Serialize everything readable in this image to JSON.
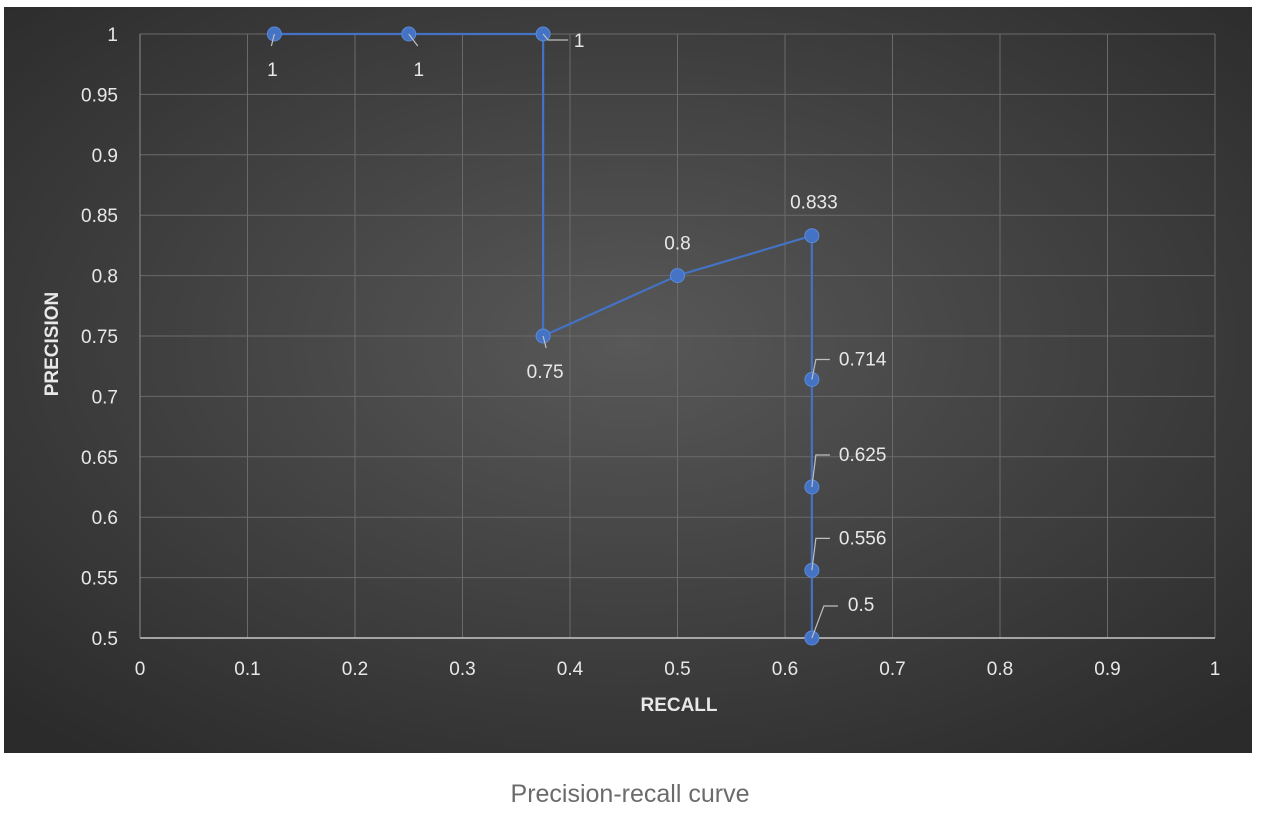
{
  "chart_data": {
    "type": "line",
    "xlabel": "RECALL",
    "ylabel": "PRECISION",
    "xlim": [
      0,
      1
    ],
    "ylim": [
      0.5,
      1
    ],
    "x_ticks": [
      "0",
      "0.1",
      "0.2",
      "0.3",
      "0.4",
      "0.5",
      "0.6",
      "0.7",
      "0.8",
      "0.9",
      "1"
    ],
    "y_ticks": [
      "0.5",
      "0.55",
      "0.6",
      "0.65",
      "0.7",
      "0.75",
      "0.8",
      "0.85",
      "0.9",
      "0.95",
      "1"
    ],
    "grid": true,
    "series": [
      {
        "name": "Precision-recall",
        "color": "#4472c4",
        "points": [
          {
            "x": 0.125,
            "y": 1,
            "label": "1"
          },
          {
            "x": 0.25,
            "y": 1,
            "label": "1"
          },
          {
            "x": 0.375,
            "y": 1,
            "label": "1"
          },
          {
            "x": 0.375,
            "y": 0.75,
            "label": "0.75"
          },
          {
            "x": 0.5,
            "y": 0.8,
            "label": "0.8"
          },
          {
            "x": 0.625,
            "y": 0.833,
            "label": "0.833"
          },
          {
            "x": 0.625,
            "y": 0.714,
            "label": "0.714"
          },
          {
            "x": 0.625,
            "y": 0.625,
            "label": "0.625"
          },
          {
            "x": 0.625,
            "y": 0.556,
            "label": "0.556"
          },
          {
            "x": 0.625,
            "y": 0.5,
            "label": "0.5"
          }
        ]
      }
    ]
  },
  "caption": "Precision-recall curve",
  "colors": {
    "background_outer": "#2e2e2e",
    "background_center": "#555555",
    "grid": "#6a6a6a",
    "axis": "#c8c8c8",
    "series": "#4472c4",
    "leader": "#bfbfbf"
  }
}
